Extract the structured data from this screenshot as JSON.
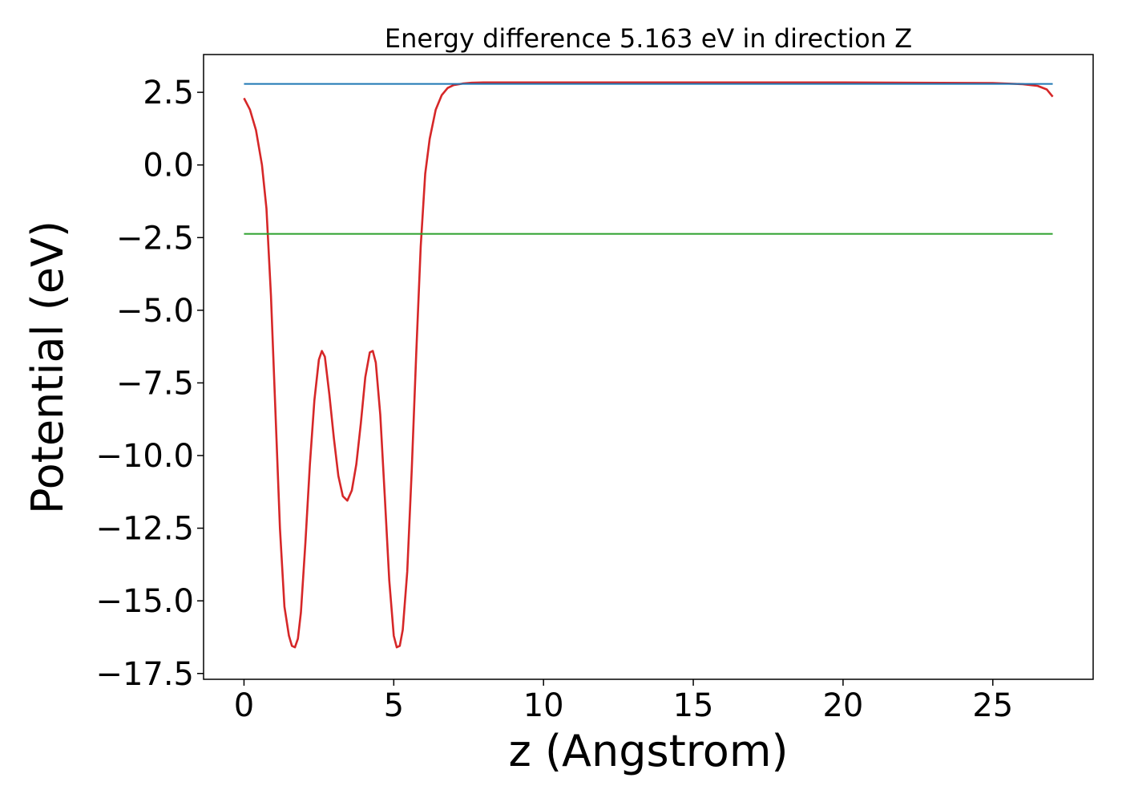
{
  "chart_data": {
    "type": "line",
    "title": "Energy difference 5.163 eV in direction Z",
    "xlabel": "z (Angstrom)",
    "ylabel": "Potential (eV)",
    "xlim": [
      -1.35,
      28.35
    ],
    "ylim": [
      -17.7,
      3.8
    ],
    "x_ticks": [
      0,
      5,
      10,
      15,
      20,
      25
    ],
    "x_tick_labels": [
      "0",
      "5",
      "10",
      "15",
      "20",
      "25"
    ],
    "y_ticks": [
      2.5,
      0.0,
      -2.5,
      -5.0,
      -7.5,
      -10.0,
      -12.5,
      -15.0,
      -17.5
    ],
    "y_tick_labels": [
      "2.5",
      "0.0",
      "−2.5",
      "−5.0",
      "−7.5",
      "−10.0",
      "−12.5",
      "−15.0",
      "−17.5"
    ],
    "grid": false,
    "series": [
      {
        "kind": "line",
        "color": "#d62728",
        "x": [
          0.0,
          0.2,
          0.4,
          0.6,
          0.75,
          0.9,
          1.05,
          1.2,
          1.35,
          1.5,
          1.6,
          1.7,
          1.8,
          1.9,
          2.05,
          2.2,
          2.35,
          2.5,
          2.6,
          2.7,
          2.85,
          3.0,
          3.15,
          3.3,
          3.45,
          3.6,
          3.75,
          3.9,
          4.05,
          4.2,
          4.3,
          4.4,
          4.55,
          4.7,
          4.85,
          5.0,
          5.1,
          5.2,
          5.3,
          5.45,
          5.6,
          5.75,
          5.9,
          6.05,
          6.2,
          6.4,
          6.6,
          6.8,
          7.0,
          7.3,
          7.6,
          8.0,
          8.5,
          9.0,
          10.0,
          15.0,
          20.0,
          25.0,
          26.0,
          26.5,
          26.8,
          27.0
        ],
        "y": [
          2.3,
          1.9,
          1.2,
          0.0,
          -1.5,
          -4.5,
          -8.5,
          -12.5,
          -15.2,
          -16.2,
          -16.55,
          -16.6,
          -16.3,
          -15.4,
          -13.0,
          -10.3,
          -8.1,
          -6.7,
          -6.4,
          -6.6,
          -7.9,
          -9.4,
          -10.7,
          -11.4,
          -11.55,
          -11.2,
          -10.3,
          -8.9,
          -7.3,
          -6.45,
          -6.4,
          -6.8,
          -8.6,
          -11.4,
          -14.3,
          -16.2,
          -16.6,
          -16.55,
          -16.0,
          -14.0,
          -10.5,
          -6.5,
          -2.8,
          -0.3,
          0.9,
          1.9,
          2.4,
          2.65,
          2.75,
          2.8,
          2.83,
          2.84,
          2.84,
          2.84,
          2.84,
          2.84,
          2.84,
          2.82,
          2.78,
          2.72,
          2.6,
          2.35
        ]
      },
      {
        "kind": "hline",
        "color": "#1f77b4",
        "x": [
          0.0,
          27.0
        ],
        "y": [
          2.79,
          2.79
        ]
      },
      {
        "kind": "hline",
        "color": "#2ca02c",
        "x": [
          0.0,
          27.0
        ],
        "y": [
          -2.373,
          -2.373
        ]
      }
    ]
  }
}
